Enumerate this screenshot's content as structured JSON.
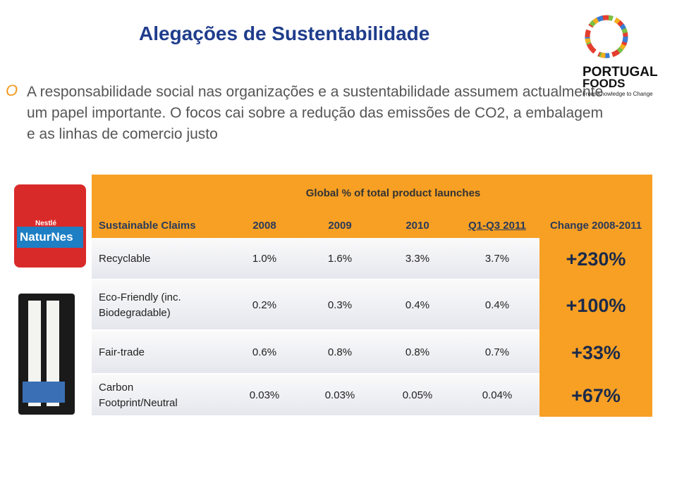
{
  "header": {
    "title": "Alegações de Sustentabilidade",
    "bullet": "A responsabilidade social nas organizações e a sustentabilidade assumem actualmente um papel importante. O focos cai sobre a redução das emissões de CO2, a embalagem e as linhas de comercio justo"
  },
  "logo": {
    "line1": "PORTUGAL",
    "line2": "FOODS",
    "tagline": "From Knowledge to Change"
  },
  "product": {
    "brand": "Nestlé",
    "name": "NaturNes"
  },
  "table": {
    "caption": "Global %  of total product launches",
    "columns": [
      "Sustainable Claims",
      "2008",
      "2009",
      "2010",
      "Q1-Q3 2011",
      "Change 2008-2011"
    ],
    "rows": [
      [
        "Recyclable",
        "1.0%",
        "1.6%",
        "3.3%",
        "3.7%",
        "+230%"
      ],
      [
        "Eco-Friendly (inc. Biodegradable)",
        "0.2%",
        "0.3%",
        "0.4%",
        "0.4%",
        "+100%"
      ],
      [
        "Fair-trade",
        "0.6%",
        "0.8%",
        "0.8%",
        "0.7%",
        "+33%"
      ],
      [
        "Carbon Footprint/Neutral",
        "0.03%",
        "0.03%",
        "0.05%",
        "0.04%",
        "+67%"
      ]
    ]
  }
}
